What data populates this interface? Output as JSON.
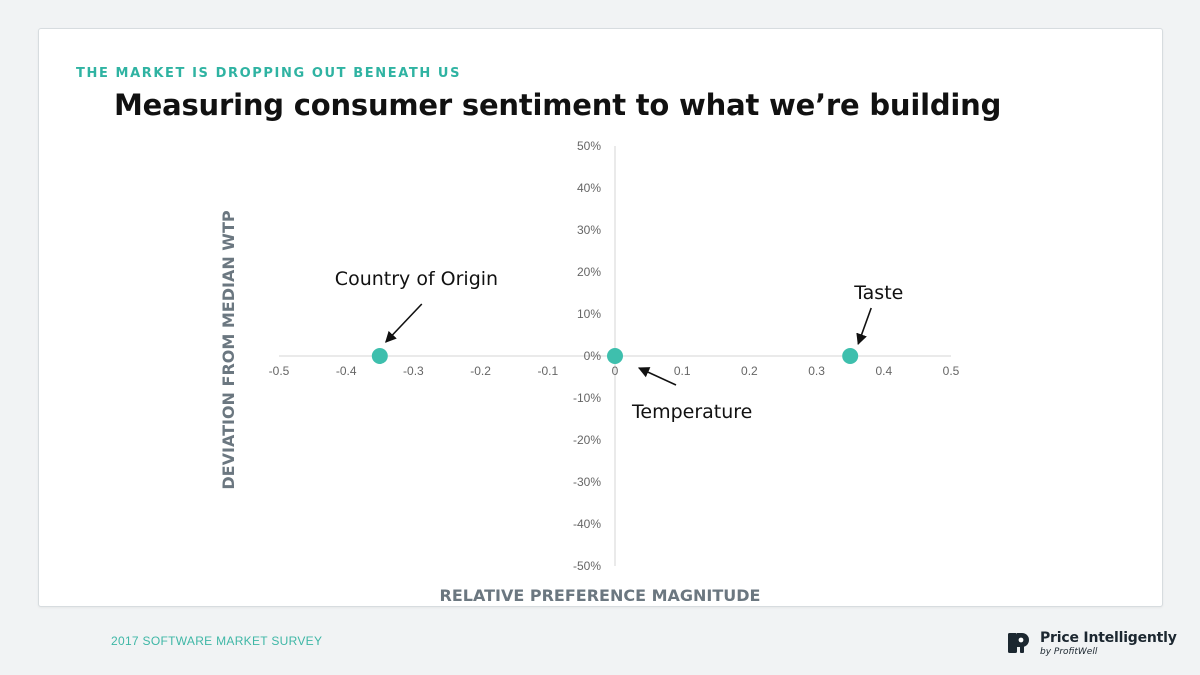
{
  "slide": {
    "eyebrow": "THE MARKET IS DROPPING OUT BENEATH US",
    "title": "Measuring consumer sentiment to what we’re building"
  },
  "footer": {
    "survey": "2017 SOFTWARE MARKET SURVEY",
    "brand_name": "Price Intelligently",
    "brand_sub": "by ProfitWell"
  },
  "colors": {
    "accent": "#2fb3a2",
    "point": "#3ebfad",
    "axis_title": "#6b7780"
  },
  "chart_data": {
    "type": "scatter",
    "xlabel": "RELATIVE PREFERENCE MAGNITUDE",
    "ylabel": "DEVIATION FROM MEDIAN WTP",
    "xlim": [
      -0.5,
      0.5
    ],
    "ylim": [
      -0.5,
      0.5
    ],
    "x_ticks": [
      "-0.5",
      "-0.4",
      "-0.3",
      "-0.2",
      "-0.1",
      "0",
      "0.1",
      "0.2",
      "0.3",
      "0.4",
      "0.5"
    ],
    "y_ticks": [
      "50%",
      "40%",
      "30%",
      "20%",
      "10%",
      "0%",
      "-10%",
      "-20%",
      "-30%",
      "-40%",
      "-50%"
    ],
    "grid": false,
    "points": [
      {
        "label": "Country of Origin",
        "x": -0.35,
        "y": 0.0
      },
      {
        "label": "Temperature",
        "x": 0.0,
        "y": 0.0
      },
      {
        "label": "Taste",
        "x": 0.35,
        "y": 0.0
      }
    ]
  }
}
